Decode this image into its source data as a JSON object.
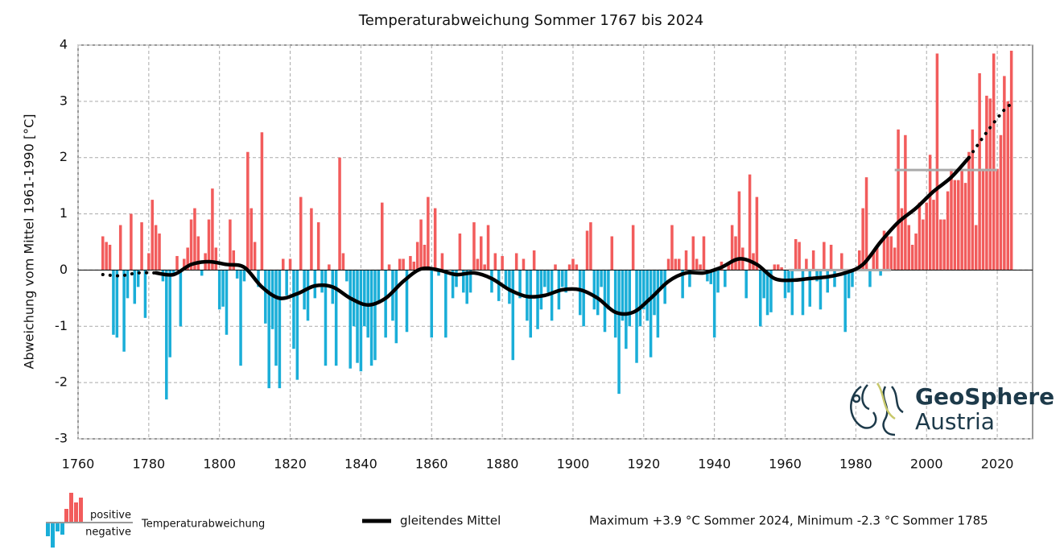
{
  "chart_data": {
    "type": "bar",
    "title": "Temperaturabweichung Sommer 1767 bis 2024",
    "y_label": "Abweichung vom Mittel 1961-1990 [°C]",
    "x": [
      1767,
      1768,
      1769,
      1770,
      1771,
      1772,
      1773,
      1774,
      1775,
      1776,
      1777,
      1778,
      1779,
      1780,
      1781,
      1782,
      1783,
      1784,
      1785,
      1786,
      1787,
      1788,
      1789,
      1790,
      1791,
      1792,
      1793,
      1794,
      1795,
      1796,
      1797,
      1798,
      1799,
      1800,
      1801,
      1802,
      1803,
      1804,
      1805,
      1806,
      1807,
      1808,
      1809,
      1810,
      1811,
      1812,
      1813,
      1814,
      1815,
      1816,
      1817,
      1818,
      1819,
      1820,
      1821,
      1822,
      1823,
      1824,
      1825,
      1826,
      1827,
      1828,
      1829,
      1830,
      1831,
      1832,
      1833,
      1834,
      1835,
      1836,
      1837,
      1838,
      1839,
      1840,
      1841,
      1842,
      1843,
      1844,
      1845,
      1846,
      1847,
      1848,
      1849,
      1850,
      1851,
      1852,
      1853,
      1854,
      1855,
      1856,
      1857,
      1858,
      1859,
      1860,
      1861,
      1862,
      1863,
      1864,
      1865,
      1866,
      1867,
      1868,
      1869,
      1870,
      1871,
      1872,
      1873,
      1874,
      1875,
      1876,
      1877,
      1878,
      1879,
      1880,
      1881,
      1882,
      1883,
      1884,
      1885,
      1886,
      1887,
      1888,
      1889,
      1890,
      1891,
      1892,
      1893,
      1894,
      1895,
      1896,
      1897,
      1898,
      1899,
      1900,
      1901,
      1902,
      1903,
      1904,
      1905,
      1906,
      1907,
      1908,
      1909,
      1910,
      1911,
      1912,
      1913,
      1914,
      1915,
      1916,
      1917,
      1918,
      1919,
      1920,
      1921,
      1922,
      1923,
      1924,
      1925,
      1926,
      1927,
      1928,
      1929,
      1930,
      1931,
      1932,
      1933,
      1934,
      1935,
      1936,
      1937,
      1938,
      1939,
      1940,
      1941,
      1942,
      1943,
      1944,
      1945,
      1946,
      1947,
      1948,
      1949,
      1950,
      1951,
      1952,
      1953,
      1954,
      1955,
      1956,
      1957,
      1958,
      1959,
      1960,
      1961,
      1962,
      1963,
      1964,
      1965,
      1966,
      1967,
      1968,
      1969,
      1970,
      1971,
      1972,
      1973,
      1974,
      1975,
      1976,
      1977,
      1978,
      1979,
      1980,
      1981,
      1982,
      1983,
      1984,
      1985,
      1986,
      1987,
      1988,
      1989,
      1990,
      1991,
      1992,
      1993,
      1994,
      1995,
      1996,
      1997,
      1998,
      1999,
      2000,
      2001,
      2002,
      2003,
      2004,
      2005,
      2006,
      2007,
      2008,
      2009,
      2010,
      2011,
      2012,
      2013,
      2014,
      2015,
      2016,
      2017,
      2018,
      2019,
      2020,
      2021,
      2022,
      2023,
      2024
    ],
    "values": [
      0.6,
      0.5,
      0.45,
      -1.15,
      -1.2,
      0.8,
      -1.45,
      -0.5,
      1.0,
      -0.6,
      -0.3,
      0.85,
      -0.85,
      0.3,
      1.25,
      0.8,
      0.65,
      -0.2,
      -2.3,
      -1.55,
      -0.05,
      0.25,
      -1.0,
      0.2,
      0.4,
      0.9,
      1.1,
      0.6,
      -0.1,
      0.3,
      0.9,
      1.45,
      0.4,
      -0.7,
      -0.65,
      -1.15,
      0.9,
      0.35,
      -0.15,
      -1.7,
      -0.2,
      2.1,
      1.1,
      0.5,
      -0.3,
      2.45,
      -0.95,
      -2.1,
      -1.05,
      -1.7,
      -2.1,
      0.2,
      -0.45,
      0.2,
      -1.4,
      -1.95,
      1.3,
      -0.7,
      -0.9,
      1.1,
      -0.5,
      0.85,
      -0.4,
      -1.7,
      0.1,
      -0.6,
      -1.7,
      2.0,
      0.3,
      -0.2,
      -1.75,
      -1.0,
      -1.65,
      -1.8,
      -1.0,
      -1.2,
      -1.7,
      -1.6,
      -0.6,
      1.2,
      -1.2,
      0.1,
      -0.9,
      -1.3,
      0.2,
      0.2,
      -1.1,
      0.25,
      0.15,
      0.5,
      0.9,
      0.45,
      1.3,
      -1.2,
      1.1,
      -0.1,
      0.3,
      -1.2,
      0.0,
      -0.5,
      -0.3,
      0.65,
      -0.4,
      -0.6,
      -0.4,
      0.85,
      0.2,
      0.6,
      0.1,
      0.8,
      -0.4,
      0.3,
      -0.55,
      0.25,
      -0.3,
      -0.6,
      -1.6,
      0.3,
      -0.5,
      0.2,
      -0.9,
      -1.2,
      0.35,
      -1.05,
      -0.7,
      -0.3,
      -0.4,
      -0.9,
      0.1,
      -0.7,
      -0.3,
      -0.4,
      0.1,
      0.2,
      0.1,
      -0.8,
      -1.0,
      0.7,
      0.85,
      -0.7,
      -0.8,
      -0.3,
      -1.1,
      -0.7,
      0.6,
      -1.2,
      -2.2,
      -0.9,
      -1.4,
      -1.0,
      0.8,
      -1.65,
      -1.0,
      -0.7,
      -0.9,
      -1.55,
      -0.8,
      -1.2,
      -0.3,
      -0.6,
      0.2,
      0.8,
      0.2,
      0.2,
      -0.5,
      0.35,
      -0.3,
      0.6,
      0.2,
      0.1,
      0.6,
      -0.2,
      -0.25,
      -1.2,
      -0.4,
      0.15,
      -0.3,
      0.1,
      0.8,
      0.6,
      1.4,
      0.4,
      -0.5,
      1.7,
      0.3,
      1.3,
      -1.0,
      -0.5,
      -0.8,
      -0.75,
      0.1,
      0.1,
      0.05,
      -0.5,
      -0.4,
      -0.8,
      0.55,
      0.5,
      -0.8,
      0.2,
      -0.65,
      0.35,
      -0.2,
      -0.7,
      0.5,
      -0.4,
      0.45,
      -0.3,
      0.0,
      0.3,
      -1.1,
      -0.5,
      -0.3,
      0.0,
      0.35,
      1.1,
      1.65,
      -0.3,
      0.35,
      0.4,
      -0.1,
      0.7,
      0.6,
      0.6,
      0.4,
      2.5,
      1.1,
      2.4,
      0.8,
      0.45,
      0.65,
      1.2,
      0.9,
      1.2,
      2.05,
      1.25,
      3.85,
      0.9,
      0.9,
      1.4,
      1.8,
      1.6,
      1.6,
      1.8,
      1.55,
      2.1,
      2.5,
      0.8,
      3.5,
      1.8,
      3.1,
      3.05,
      3.85,
      1.8,
      2.4,
      3.45,
      3.0,
      3.9
    ],
    "positive_color": "#f25c5c",
    "negative_color": "#1aaed8",
    "smooth": {
      "name": "gleitendes Mittel",
      "color": "#000000",
      "x": [
        1767,
        1772,
        1777,
        1782,
        1787,
        1792,
        1797,
        1802,
        1807,
        1812,
        1817,
        1822,
        1827,
        1832,
        1837,
        1842,
        1847,
        1852,
        1857,
        1862,
        1867,
        1872,
        1877,
        1882,
        1887,
        1892,
        1897,
        1902,
        1907,
        1912,
        1917,
        1922,
        1927,
        1932,
        1937,
        1942,
        1947,
        1952,
        1957,
        1962,
        1967,
        1972,
        1977,
        1982,
        1987,
        1992,
        1997,
        2002,
        2007,
        2012,
        2017,
        2022,
        2024
      ],
      "values": [
        -0.08,
        -0.1,
        -0.05,
        -0.05,
        -0.08,
        0.1,
        0.15,
        0.1,
        0.05,
        -0.3,
        -0.5,
        -0.42,
        -0.28,
        -0.3,
        -0.5,
        -0.62,
        -0.5,
        -0.2,
        0.02,
        0.0,
        -0.08,
        -0.05,
        -0.15,
        -0.35,
        -0.47,
        -0.45,
        -0.35,
        -0.35,
        -0.5,
        -0.75,
        -0.75,
        -0.5,
        -0.2,
        -0.05,
        -0.05,
        0.05,
        0.2,
        0.1,
        -0.15,
        -0.18,
        -0.15,
        -0.12,
        -0.05,
        0.1,
        0.5,
        0.85,
        1.1,
        1.4,
        1.65,
        2.0,
        2.45,
        2.85,
        2.95
      ],
      "dotted_until": 1782,
      "dotted_from": 2012
    },
    "reference_lines": [
      {
        "x": [
          1961,
          1990
        ],
        "value": 0
      },
      {
        "x": [
          1991,
          2020
        ],
        "value": 1.78
      }
    ],
    "reference_color": "#aaaaaa",
    "xlim": [
      1760,
      2030
    ],
    "xticks": [
      1760,
      1780,
      1800,
      1820,
      1840,
      1860,
      1880,
      1900,
      1920,
      1940,
      1960,
      1980,
      2000,
      2020
    ],
    "ylim": [
      -3,
      4
    ],
    "yticks": [
      -3,
      -2,
      -1,
      0,
      1,
      2,
      3,
      4
    ],
    "grid": true,
    "legend": {
      "positive": "positive",
      "negative": "negative",
      "bars": "Temperaturabweichung"
    },
    "note": "Maximum +3.9 °C Sommer 2024, Minimum -2.3 °C Sommer 1785",
    "logo": {
      "name": "GeoSphere",
      "sub": "Austria"
    }
  }
}
